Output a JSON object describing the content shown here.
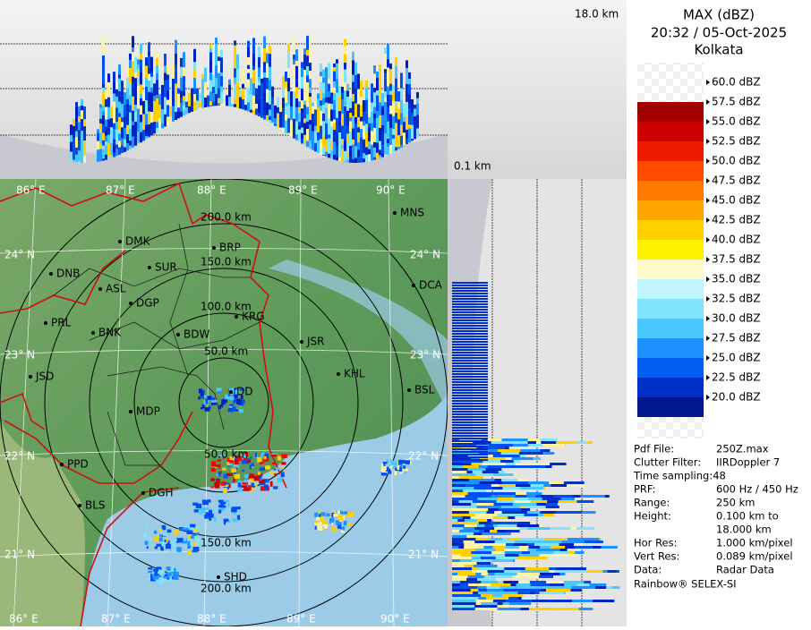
{
  "header": {
    "title": "MAX (dBZ)",
    "datetime": "20:32 / 05-Oct-2025",
    "location": "Kolkata"
  },
  "legend": {
    "labels": [
      "60.0 dBZ",
      "57.5 dBZ",
      "55.0 dBZ",
      "52.5 dBZ",
      "50.0 dBZ",
      "47.5 dBZ",
      "45.0 dBZ",
      "42.5 dBZ",
      "40.0 dBZ",
      "37.5 dBZ",
      "35.0 dBZ",
      "32.5 dBZ",
      "30.0 dBZ",
      "27.5 dBZ",
      "25.0 dBZ",
      "22.5 dBZ",
      "20.0 dBZ"
    ],
    "colors": [
      "#a00000",
      "#cc0000",
      "#ee1a00",
      "#ff4a00",
      "#ff7800",
      "#ffa500",
      "#ffd000",
      "#fff200",
      "#fffacd",
      "#c0f4ff",
      "#80e4ff",
      "#48c8ff",
      "#1e90ff",
      "#0060f0",
      "#0030c8",
      "#001890"
    ]
  },
  "info": {
    "rows": [
      [
        "Pdf File:",
        "250Z.max"
      ],
      [
        "Clutter Filter:",
        "IIRDoppler 7"
      ],
      [
        "Time sampling:48"
      ],
      [
        "PRF:",
        "600 Hz / 450 Hz"
      ],
      [
        "Range:",
        "250 km"
      ],
      [
        "Height:",
        "0.100 km to",
        "18.000 km"
      ],
      [
        "Hor Res:",
        "1.000 km/pixel"
      ],
      [
        "Vert Res:",
        "0.089 km/pixel"
      ],
      [
        "Data:",
        "Radar Data"
      ]
    ],
    "footer": "Rainbow® SELEX-SI"
  },
  "panels": {
    "top_height": "18.0 km",
    "bottom_height": "0.1 km"
  },
  "map": {
    "cities": [
      "DMK",
      "BRP",
      "SUR",
      "DNB",
      "ASL",
      "DGP",
      "KRG",
      "PRL",
      "BNK",
      "BDW",
      "JSR",
      "KHL",
      "JSD",
      "DD",
      "MDP",
      "BSL",
      "DCA",
      "MNS",
      "PPD",
      "DGH",
      "BLS",
      "SHD"
    ],
    "graticule": [
      "86° E",
      "87° E",
      "88° E",
      "89° E",
      "90° E",
      "86° E",
      "87° E",
      "88° E",
      "89° E",
      "90° E",
      "24° N",
      "23° N",
      "22° N",
      "21° N",
      "24° N",
      "23° N",
      "22° N",
      "21° N"
    ],
    "range_labels": [
      "200.0 km",
      "150.0 km",
      "100.0 km",
      "50.0 km",
      "50.0 km",
      "150.0 km",
      "200.0 km"
    ]
  }
}
